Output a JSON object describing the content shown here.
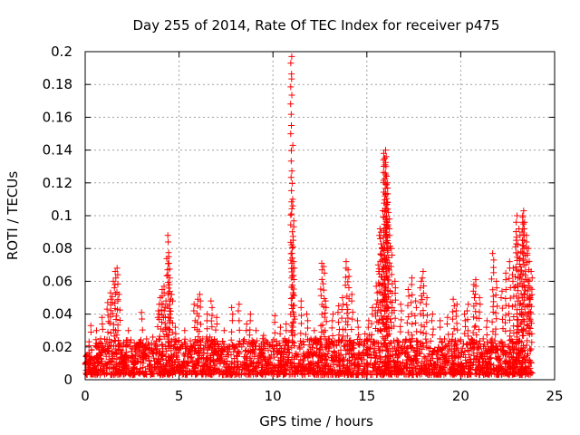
{
  "chart_data": {
    "type": "scatter",
    "title": "Day 255 of 2014, Rate Of TEC Index for receiver p475",
    "xlabel": "GPS time / hours",
    "ylabel": "ROTI / TECUs",
    "xlim": [
      0,
      25
    ],
    "ylim": [
      0,
      0.2
    ],
    "xticks": [
      0,
      5,
      10,
      15,
      20,
      25
    ],
    "yticks": [
      0,
      0.02,
      0.04,
      0.06,
      0.08,
      0.1,
      0.12,
      0.14,
      0.16,
      0.18,
      0.2
    ],
    "grid": true,
    "marker": "+",
    "color": "#ff0000",
    "series": [
      {
        "name": "ROTI",
        "points": [
          [
            0.3,
            0.033
          ],
          [
            0.6,
            0.03
          ],
          [
            0.9,
            0.038
          ],
          [
            1.2,
            0.047
          ],
          [
            1.35,
            0.053
          ],
          [
            1.5,
            0.06
          ],
          [
            1.6,
            0.066
          ],
          [
            1.7,
            0.068
          ],
          [
            1.8,
            0.052
          ],
          [
            2.3,
            0.03
          ],
          [
            3.0,
            0.041
          ],
          [
            3.6,
            0.026
          ],
          [
            3.9,
            0.042
          ],
          [
            4.0,
            0.05
          ],
          [
            4.1,
            0.055
          ],
          [
            4.2,
            0.057
          ],
          [
            4.3,
            0.048
          ],
          [
            4.4,
            0.088
          ],
          [
            4.45,
            0.075
          ],
          [
            4.5,
            0.062
          ],
          [
            4.6,
            0.052
          ],
          [
            4.8,
            0.032
          ],
          [
            5.3,
            0.03
          ],
          [
            5.8,
            0.046
          ],
          [
            6.0,
            0.049
          ],
          [
            6.1,
            0.052
          ],
          [
            6.5,
            0.04
          ],
          [
            6.7,
            0.048
          ],
          [
            7.0,
            0.038
          ],
          [
            7.4,
            0.03
          ],
          [
            7.8,
            0.044
          ],
          [
            8.2,
            0.046
          ],
          [
            8.6,
            0.034
          ],
          [
            8.8,
            0.04
          ],
          [
            9.1,
            0.03
          ],
          [
            9.5,
            0.027
          ],
          [
            10.1,
            0.039
          ],
          [
            10.4,
            0.032
          ],
          [
            10.7,
            0.034
          ],
          [
            11.0,
            0.197
          ],
          [
            11.05,
            0.11
          ],
          [
            11.08,
            0.085
          ],
          [
            11.1,
            0.072
          ],
          [
            11.5,
            0.048
          ],
          [
            11.8,
            0.04
          ],
          [
            12.2,
            0.03
          ],
          [
            12.6,
            0.071
          ],
          [
            12.7,
            0.069
          ],
          [
            12.8,
            0.048
          ],
          [
            13.2,
            0.04
          ],
          [
            13.5,
            0.045
          ],
          [
            13.7,
            0.05
          ],
          [
            13.9,
            0.072
          ],
          [
            14.0,
            0.067
          ],
          [
            14.2,
            0.052
          ],
          [
            14.5,
            0.036
          ],
          [
            14.9,
            0.028
          ],
          [
            15.1,
            0.036
          ],
          [
            15.3,
            0.044
          ],
          [
            15.5,
            0.057
          ],
          [
            15.6,
            0.07
          ],
          [
            15.7,
            0.092
          ],
          [
            15.75,
            0.09
          ],
          [
            15.8,
            0.08
          ],
          [
            15.9,
            0.138
          ],
          [
            15.95,
            0.135
          ],
          [
            16.0,
            0.14
          ],
          [
            16.02,
            0.13
          ],
          [
            16.05,
            0.124
          ],
          [
            16.1,
            0.108
          ],
          [
            16.15,
            0.102
          ],
          [
            16.2,
            0.092
          ],
          [
            16.3,
            0.08
          ],
          [
            16.5,
            0.06
          ],
          [
            16.8,
            0.046
          ],
          [
            17.2,
            0.055
          ],
          [
            17.4,
            0.062
          ],
          [
            17.6,
            0.048
          ],
          [
            17.9,
            0.06
          ],
          [
            18.0,
            0.066
          ],
          [
            18.2,
            0.05
          ],
          [
            18.5,
            0.04
          ],
          [
            18.9,
            0.036
          ],
          [
            19.3,
            0.038
          ],
          [
            19.6,
            0.049
          ],
          [
            19.8,
            0.046
          ],
          [
            20.2,
            0.04
          ],
          [
            20.4,
            0.046
          ],
          [
            20.7,
            0.058
          ],
          [
            20.8,
            0.061
          ],
          [
            21.0,
            0.05
          ],
          [
            21.4,
            0.036
          ],
          [
            21.7,
            0.077
          ],
          [
            21.9,
            0.06
          ],
          [
            22.2,
            0.054
          ],
          [
            22.4,
            0.065
          ],
          [
            22.6,
            0.072
          ],
          [
            22.8,
            0.068
          ],
          [
            22.95,
            0.085
          ],
          [
            23.0,
            0.1
          ],
          [
            23.1,
            0.092
          ],
          [
            23.2,
            0.078
          ],
          [
            23.3,
            0.1
          ],
          [
            23.35,
            0.103
          ],
          [
            23.4,
            0.096
          ],
          [
            23.5,
            0.088
          ],
          [
            23.6,
            0.08
          ],
          [
            23.65,
            0.06
          ],
          [
            23.7,
            0.05
          ],
          [
            23.75,
            0.066
          ]
        ]
      }
    ]
  }
}
